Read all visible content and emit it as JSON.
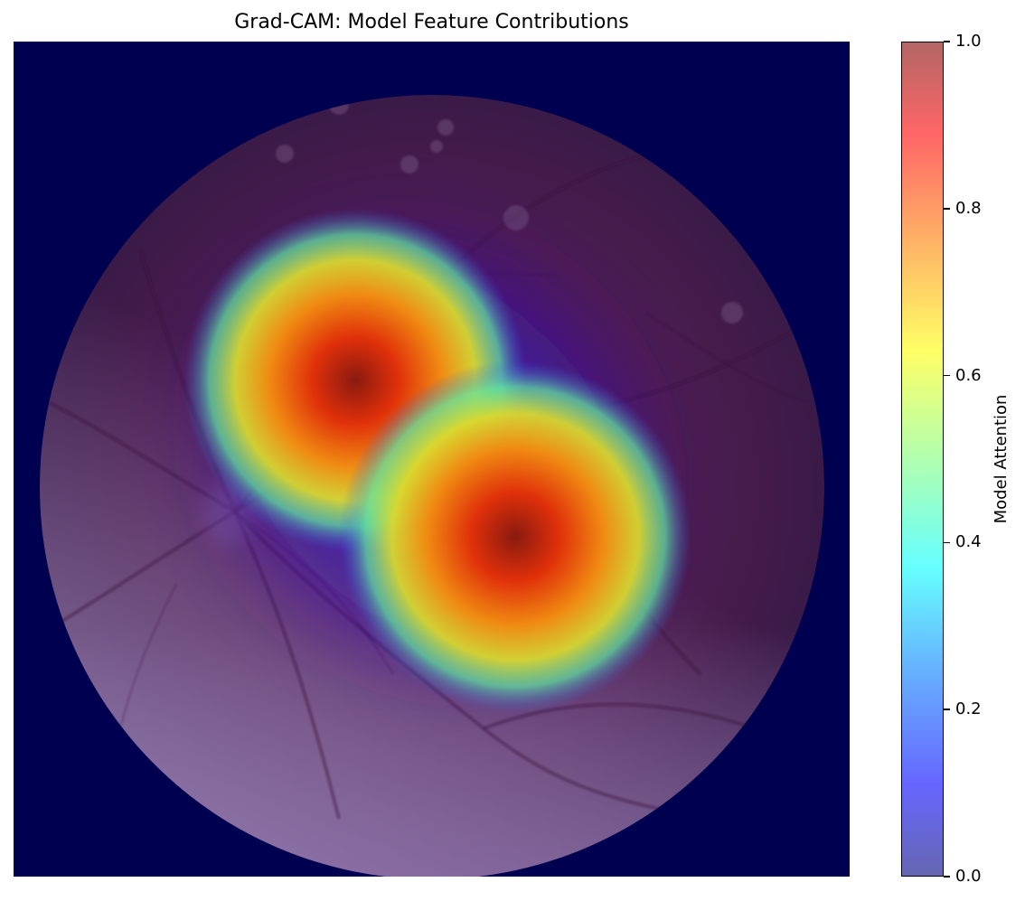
{
  "chart_data": {
    "type": "heatmap",
    "title": "Grad-CAM: Model Feature Contributions",
    "colorbar": {
      "label": "Model Attention",
      "range": [
        0.0,
        1.0
      ],
      "colormap": "jet",
      "ticks": [
        "0.0",
        "0.2",
        "0.4",
        "0.6",
        "0.8",
        "1.0"
      ]
    },
    "axes_visible": false,
    "background_color": "#000050",
    "hotspots": [
      {
        "center": [
          0.41,
          0.41
        ],
        "peak": 1.0
      },
      {
        "center": [
          0.6,
          0.6
        ],
        "peak": 1.0
      }
    ]
  }
}
